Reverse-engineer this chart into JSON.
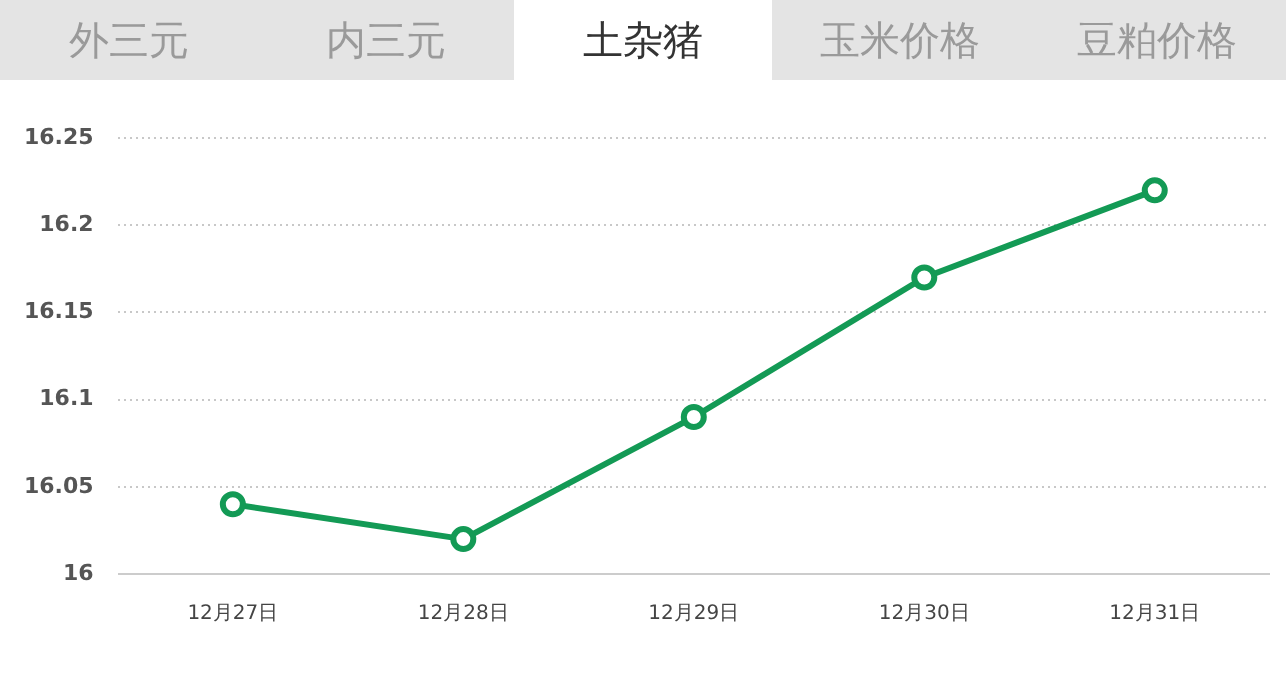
{
  "chart_data": {
    "type": "line",
    "title": "土杂猪",
    "annotations": [
      "外三元",
      "内三元",
      "玉米价格",
      "豆粕价格"
    ],
    "categories": [
      "12月27日",
      "12月28日",
      "12月29日",
      "12月30日",
      "12月31日"
    ],
    "series": [
      {
        "color": "#139a55",
        "values": [
          16.04,
          16.02,
          16.09,
          16.17,
          16.22
        ]
      }
    ],
    "ylim": [
      16,
      16.25
    ],
    "yticks": [
      16,
      16.05,
      16.1,
      16.15,
      16.2,
      16.25
    ],
    "grid": "y",
    "legend": false,
    "marker": "circle",
    "line_style": "solid"
  }
}
